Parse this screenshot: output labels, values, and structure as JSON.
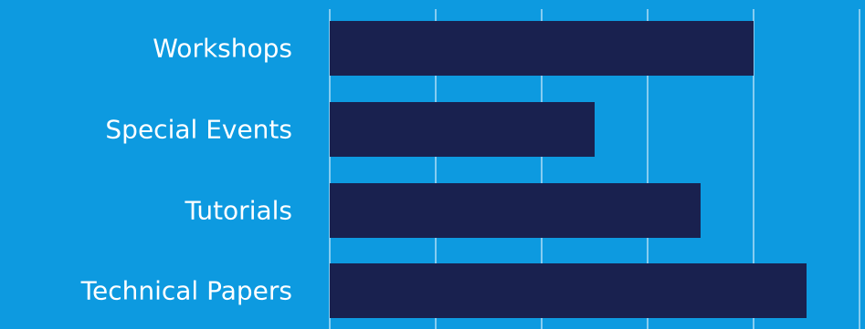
{
  "chart_data": {
    "type": "bar",
    "orientation": "horizontal",
    "categories": [
      "Workshops",
      "Special Events",
      "Tutorials",
      "Technical Papers"
    ],
    "values": [
      4,
      2.5,
      3.5,
      4.5
    ],
    "xlim": [
      0,
      5
    ],
    "grid": true,
    "colors": {
      "background": "#0d9ae0",
      "bar": "#19214f",
      "gridline": "#ffffff",
      "label": "#ffffff"
    }
  }
}
